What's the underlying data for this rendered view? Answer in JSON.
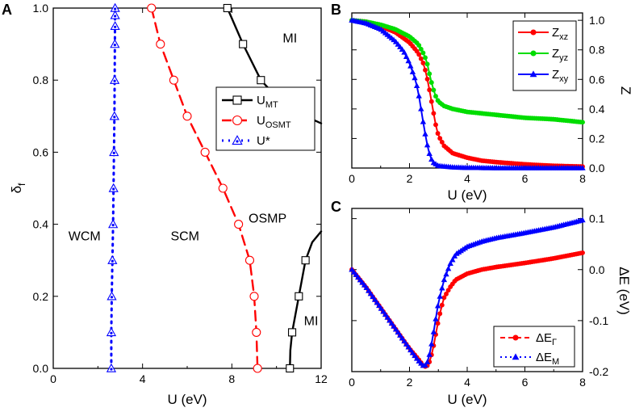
{
  "panels": {
    "A": {
      "letter": "A",
      "type": "line",
      "xlabel": "U (eV)",
      "ylabel": "δ",
      "ylabel_sub": "f",
      "xlim": [
        0,
        12
      ],
      "ylim": [
        0,
        1.0
      ],
      "xticks": [
        0,
        4,
        8,
        12
      ],
      "yticks": [
        0.0,
        0.2,
        0.4,
        0.6,
        0.8,
        1.0
      ],
      "xtick_labels": [
        "0",
        "4",
        "8",
        "12"
      ],
      "ytick_labels": [
        "0.0",
        "0.2",
        "0.4",
        "0.6",
        "0.8",
        "1.0"
      ],
      "regions": [
        {
          "label": "WCM",
          "x": 1.4,
          "y": 0.355
        },
        {
          "label": "SCM",
          "x": 5.9,
          "y": 0.355
        },
        {
          "label": "OSMP",
          "x": 9.6,
          "y": 0.405
        },
        {
          "label": "MI",
          "x": 10.6,
          "y": 0.905
        },
        {
          "label": "MI",
          "x": 11.55,
          "y": 0.12
        }
      ],
      "legend": [
        {
          "main": "U",
          "sub": "MT",
          "series": "U_MT"
        },
        {
          "main": "U",
          "sub": "OSMT",
          "series": "U_OSMT"
        },
        {
          "main": "U*",
          "sub": "",
          "series": "U_star"
        }
      ],
      "series": [
        {
          "name": "U_MT",
          "color": "#000000",
          "dash": "solid",
          "marker": "square",
          "x": [
            7.8,
            8.5,
            9.3,
            10.2,
            11.3,
            12.0
          ],
          "y": [
            1.0,
            0.9,
            0.8,
            0.74,
            0.7,
            0.68
          ],
          "markers_x": [
            7.8,
            8.5,
            9.3,
            10.2,
            11.3
          ],
          "markers_y": [
            1.0,
            0.9,
            0.8,
            0.74,
            0.7
          ]
        },
        {
          "name": "U_MT_low",
          "color": "#000000",
          "dash": "solid",
          "marker": "square",
          "x": [
            10.6,
            10.62,
            10.7,
            10.85,
            11.0,
            11.3,
            11.6,
            12.0
          ],
          "y": [
            0.0,
            0.05,
            0.1,
            0.15,
            0.2,
            0.3,
            0.35,
            0.38
          ],
          "markers_x": [
            10.6,
            10.7,
            11.0,
            11.3
          ],
          "markers_y": [
            0.0,
            0.1,
            0.2,
            0.3
          ]
        },
        {
          "name": "U_OSMT",
          "color": "#ff0000",
          "dash": "dashed",
          "marker": "circle",
          "x": [
            4.4,
            4.8,
            5.4,
            6.0,
            6.8,
            7.6,
            8.3,
            8.8,
            9.0,
            9.1,
            9.15
          ],
          "y": [
            1.0,
            0.9,
            0.8,
            0.7,
            0.6,
            0.5,
            0.4,
            0.3,
            0.2,
            0.1,
            0.0
          ],
          "markers_x": [
            4.4,
            4.8,
            5.4,
            6.0,
            6.8,
            7.6,
            8.3,
            8.8,
            9.0,
            9.1,
            9.15
          ],
          "markers_y": [
            1.0,
            0.9,
            0.8,
            0.7,
            0.6,
            0.5,
            0.4,
            0.3,
            0.2,
            0.1,
            0.0
          ]
        },
        {
          "name": "U_star",
          "color": "#0000ff",
          "dash": "dotted",
          "marker": "triangle",
          "x": [
            2.6,
            2.6,
            2.62,
            2.65,
            2.68,
            2.7,
            2.72,
            2.74,
            2.75,
            2.76,
            2.77
          ],
          "y": [
            0.0,
            0.1,
            0.2,
            0.3,
            0.4,
            0.5,
            0.6,
            0.7,
            0.8,
            0.9,
            1.0
          ],
          "markers_x": [
            2.6,
            2.6,
            2.62,
            2.65,
            2.68,
            2.7,
            2.72,
            2.74,
            2.75,
            2.76,
            2.77,
            2.77,
            2.77
          ],
          "markers_y": [
            0.0,
            0.1,
            0.2,
            0.3,
            0.4,
            0.5,
            0.6,
            0.7,
            0.8,
            0.9,
            1.0,
            0.95,
            0.98
          ]
        }
      ]
    },
    "B": {
      "letter": "B",
      "type": "line",
      "xlabel": "U (eV)",
      "ylabel": "Z",
      "xlim": [
        0,
        8
      ],
      "ylim": [
        0,
        1.05
      ],
      "xticks": [
        0,
        2,
        4,
        6,
        8
      ],
      "yticks": [
        0.0,
        0.2,
        0.4,
        0.6,
        0.8,
        1.0
      ],
      "xtick_labels": [
        "0",
        "2",
        "4",
        "6",
        "8"
      ],
      "ytick_labels": [
        "0.0",
        "0.2",
        "0.4",
        "0.6",
        "0.8",
        "1.0"
      ],
      "legend": [
        {
          "main": "Z",
          "sub": "xz",
          "series": "Z_xz"
        },
        {
          "main": "Z",
          "sub": "yz",
          "series": "Z_yz"
        },
        {
          "main": "Z",
          "sub": "xy",
          "series": "Z_xy"
        }
      ],
      "series": [
        {
          "name": "Z_xz",
          "color": "#ff0000",
          "marker": "circle",
          "x": [
            0,
            0.5,
            1.0,
            1.5,
            2.0,
            2.3,
            2.5,
            2.6,
            2.7,
            2.8,
            2.9,
            3.0,
            3.2,
            3.5,
            4.0,
            4.5,
            5.0,
            6.0,
            7.0,
            8.0
          ],
          "y": [
            1.0,
            0.99,
            0.96,
            0.92,
            0.85,
            0.78,
            0.7,
            0.62,
            0.52,
            0.41,
            0.3,
            0.22,
            0.15,
            0.1,
            0.07,
            0.05,
            0.04,
            0.025,
            0.015,
            0.01
          ]
        },
        {
          "name": "Z_yz",
          "color": "#00dd00",
          "marker": "circle",
          "x": [
            0,
            0.5,
            1.0,
            1.5,
            2.0,
            2.3,
            2.5,
            2.6,
            2.7,
            2.8,
            2.9,
            3.0,
            3.2,
            3.5,
            4.0,
            4.5,
            5.0,
            6.0,
            7.0,
            8.0
          ],
          "y": [
            1.0,
            0.99,
            0.97,
            0.94,
            0.89,
            0.84,
            0.77,
            0.72,
            0.63,
            0.55,
            0.49,
            0.45,
            0.42,
            0.4,
            0.38,
            0.37,
            0.36,
            0.34,
            0.33,
            0.31
          ]
        },
        {
          "name": "Z_xy",
          "color": "#0000ff",
          "marker": "triangle",
          "x": [
            0,
            0.5,
            1.0,
            1.5,
            1.8,
            2.0,
            2.2,
            2.3,
            2.4,
            2.5,
            2.6,
            2.7,
            2.8,
            3.0,
            3.5,
            4.0,
            5.0,
            6.0,
            8.0
          ],
          "y": [
            1.0,
            0.98,
            0.94,
            0.86,
            0.79,
            0.71,
            0.6,
            0.52,
            0.4,
            0.28,
            0.17,
            0.09,
            0.04,
            0.015,
            0.005,
            0.002,
            0.0,
            0.0,
            0.0
          ]
        }
      ]
    },
    "C": {
      "letter": "C",
      "type": "line",
      "xlabel": "U (eV)",
      "ylabel": "ΔE (eV)",
      "xlim": [
        0,
        8
      ],
      "ylim": [
        -0.2,
        0.12
      ],
      "xticks": [
        0,
        2,
        4,
        6,
        8
      ],
      "yticks": [
        -0.2,
        -0.1,
        0.0,
        0.1
      ],
      "xtick_labels": [
        "0",
        "2",
        "4",
        "6",
        "8"
      ],
      "ytick_labels": [
        "-0.2",
        "-0.1",
        "0.0",
        "0.1"
      ],
      "legend": [
        {
          "main": "ΔE",
          "sub": "Γ",
          "series": "dE_Gamma"
        },
        {
          "main": "ΔE",
          "sub": "M",
          "series": "dE_M"
        }
      ],
      "series": [
        {
          "name": "dE_Gamma",
          "color": "#ff0000",
          "marker": "circle",
          "x": [
            0,
            0.5,
            1.0,
            1.5,
            2.0,
            2.3,
            2.5,
            2.6,
            2.7,
            2.8,
            2.9,
            3.0,
            3.1,
            3.2,
            3.4,
            3.6,
            4.0,
            4.5,
            5.0,
            6.0,
            7.0,
            8.0
          ],
          "y": [
            0.0,
            -0.035,
            -0.075,
            -0.115,
            -0.155,
            -0.175,
            -0.19,
            -0.19,
            -0.18,
            -0.16,
            -0.13,
            -0.1,
            -0.075,
            -0.055,
            -0.035,
            -0.02,
            -0.008,
            0.0,
            0.005,
            0.013,
            0.022,
            0.033
          ]
        },
        {
          "name": "dE_M",
          "color": "#0000ff",
          "marker": "triangle",
          "x": [
            0,
            0.5,
            1.0,
            1.5,
            2.0,
            2.3,
            2.5,
            2.6,
            2.7,
            2.8,
            2.9,
            3.0,
            3.2,
            3.4,
            3.6,
            4.0,
            4.5,
            5.0,
            6.0,
            7.0,
            8.0
          ],
          "y": [
            0.0,
            -0.035,
            -0.075,
            -0.115,
            -0.155,
            -0.178,
            -0.19,
            -0.185,
            -0.165,
            -0.135,
            -0.1,
            -0.065,
            -0.02,
            0.01,
            0.03,
            0.045,
            0.055,
            0.062,
            0.072,
            0.083,
            0.097
          ]
        }
      ]
    }
  }
}
